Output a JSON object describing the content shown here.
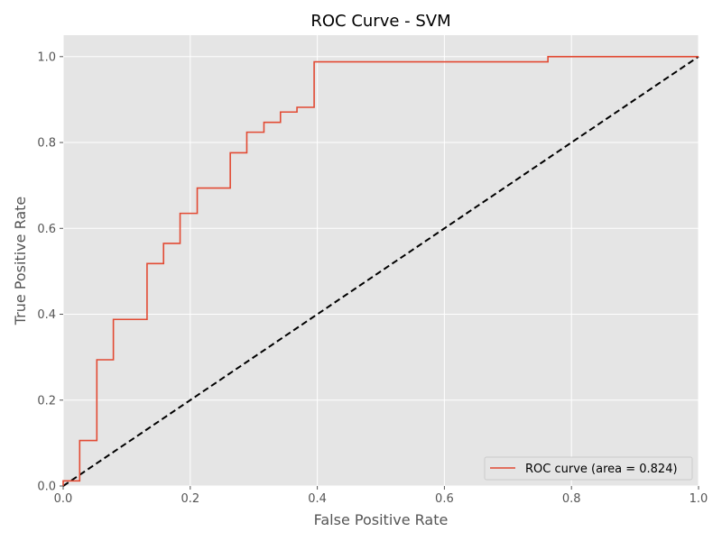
{
  "chart_data": {
    "type": "line",
    "title": "ROC Curve - SVM",
    "xlabel": "False Positive Rate",
    "ylabel": "True Positive Rate",
    "xlim": [
      0.0,
      1.0
    ],
    "ylim": [
      0.0,
      1.05
    ],
    "x_ticks": [
      "0.0",
      "0.2",
      "0.4",
      "0.6",
      "0.8",
      "1.0"
    ],
    "y_ticks": [
      "0.0",
      "0.2",
      "0.4",
      "0.6",
      "0.8",
      "1.0"
    ],
    "grid": true,
    "style": "ggplot",
    "legend_position": "lower-right",
    "series": [
      {
        "name": "ROC curve (area = 0.824)",
        "color": "#E24A33",
        "line_style": "solid",
        "x": [
          0.0,
          0.0,
          0.026,
          0.026,
          0.053,
          0.053,
          0.079,
          0.079,
          0.132,
          0.132,
          0.158,
          0.158,
          0.184,
          0.184,
          0.211,
          0.211,
          0.263,
          0.263,
          0.289,
          0.289,
          0.316,
          0.316,
          0.342,
          0.342,
          0.368,
          0.368,
          0.395,
          0.395,
          0.763,
          0.763,
          1.0
        ],
        "y": [
          0.0,
          0.012,
          0.012,
          0.106,
          0.106,
          0.294,
          0.294,
          0.388,
          0.388,
          0.518,
          0.518,
          0.565,
          0.565,
          0.635,
          0.635,
          0.694,
          0.694,
          0.776,
          0.776,
          0.824,
          0.824,
          0.847,
          0.847,
          0.871,
          0.871,
          0.882,
          0.882,
          0.988,
          0.988,
          1.0,
          1.0
        ]
      },
      {
        "name": "",
        "color": "#000000",
        "line_style": "dashed",
        "x": [
          0.0,
          1.0
        ],
        "y": [
          0.0,
          1.0
        ]
      }
    ]
  }
}
